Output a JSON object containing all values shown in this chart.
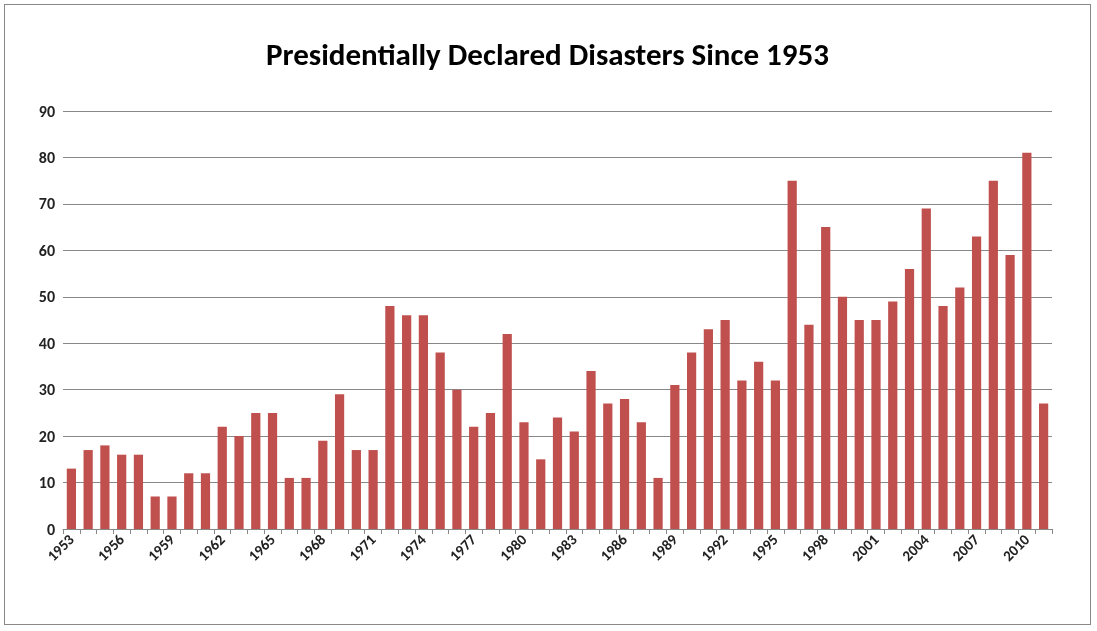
{
  "chart_data": {
    "type": "bar",
    "title": "Presidentially Declared Disasters Since 1953",
    "categories": [
      "1953",
      null,
      null,
      "1956",
      null,
      null,
      "1959",
      null,
      null,
      "1962",
      null,
      null,
      "1965",
      null,
      null,
      "1968",
      null,
      null,
      "1971",
      null,
      null,
      "1974",
      null,
      null,
      "1977",
      null,
      null,
      "1980",
      null,
      null,
      "1983",
      null,
      null,
      "1986",
      null,
      null,
      "1989",
      null,
      null,
      "1992",
      null,
      null,
      "1995",
      null,
      null,
      "1998",
      null,
      null,
      "2001",
      null,
      null,
      "2004",
      null,
      null,
      "2007",
      null,
      null,
      "2010",
      null
    ],
    "values": [
      13,
      17,
      18,
      16,
      16,
      7,
      7,
      12,
      12,
      22,
      20,
      25,
      25,
      11,
      11,
      19,
      29,
      17,
      17,
      48,
      46,
      46,
      38,
      30,
      22,
      25,
      42,
      23,
      15,
      24,
      21,
      34,
      27,
      28,
      23,
      11,
      31,
      38,
      43,
      45,
      32,
      36,
      32,
      75,
      44,
      65,
      50,
      45,
      45,
      49,
      56,
      69,
      48,
      52,
      63,
      75,
      59,
      81,
      27
    ],
    "color": "#c0504d",
    "ylim": [
      0,
      90
    ],
    "yticks": [
      0,
      10,
      20,
      30,
      40,
      50,
      60,
      70,
      80,
      90
    ],
    "grid": "y"
  }
}
